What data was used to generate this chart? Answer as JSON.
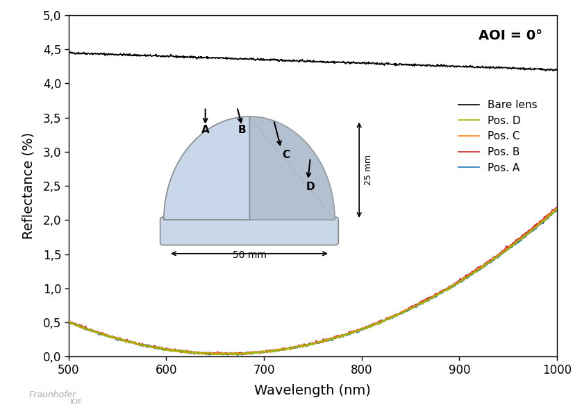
{
  "title": "AOI = 0°",
  "xlabel": "Wavelength (nm)",
  "ylabel": "Reflectance (%)",
  "xlim": [
    500,
    1000
  ],
  "ylim": [
    0.0,
    5.0
  ],
  "yticks": [
    0.0,
    0.5,
    1.0,
    1.5,
    2.0,
    2.5,
    3.0,
    3.5,
    4.0,
    4.5,
    5.0
  ],
  "ytick_labels": [
    "0,0",
    "0,5",
    "1,0",
    "1,5",
    "2,0",
    "2,5",
    "3,0",
    "3,5",
    "4,0",
    "4,5",
    "5,0"
  ],
  "xticks": [
    500,
    600,
    700,
    800,
    900,
    1000
  ],
  "legend_entries": [
    "Bare lens",
    "Pos. A",
    "Pos. B",
    "Pos. C",
    "Pos. D"
  ],
  "line_colors": [
    "#000000",
    "#1f77b4",
    "#d62728",
    "#ff7f0e",
    "#9db800"
  ],
  "background_color": "#ffffff"
}
